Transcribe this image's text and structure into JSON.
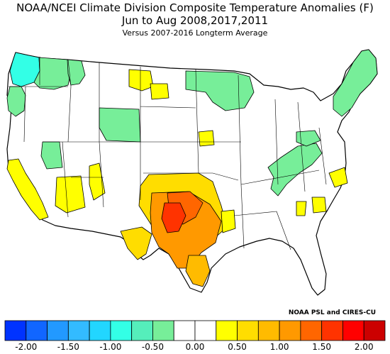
{
  "header": {
    "line1": "NOAA/NCEI Climate Division Composite Temperature Anomalies (F)",
    "line2": "Jun to Aug   2008,2017,2011",
    "line3": "Versus 2007-2016 Longterm Average"
  },
  "credit": "NOAA PSL and CIRES-CU",
  "colorbar": {
    "colors": [
      "#0033ff",
      "#1166ff",
      "#2299ff",
      "#33bbff",
      "#22d6ff",
      "#33ffe6",
      "#55eebb",
      "#77ee99",
      "#ffffff",
      "#ffffff",
      "#ffff00",
      "#ffdd00",
      "#ffbb00",
      "#ff9900",
      "#ff6600",
      "#ff3300",
      "#ff0000",
      "#cc0000"
    ],
    "tick_labels": [
      "-2.00",
      "-1.50",
      "-1.00",
      "-0.50",
      "0.00",
      "0.50",
      "1.00",
      "1.50",
      "2.00"
    ]
  },
  "map_data": {
    "projection": "Lambert conformal, contiguous United States, climate divisions",
    "anomaly_regions": [
      {
        "region": "Washington coast / Puget Sound",
        "anomaly_f": -1.0
      },
      {
        "region": "Washington Cascades / east",
        "anomaly_f": -0.5
      },
      {
        "region": "Oregon coast",
        "anomaly_f": -0.5
      },
      {
        "region": "Northern Idaho / NW Montana",
        "anomaly_f": -0.5
      },
      {
        "region": "Central Montana",
        "anomaly_f": 0.5
      },
      {
        "region": "Western North Dakota",
        "anomaly_f": 0.5
      },
      {
        "region": "Eastern North Dakota / Minnesota / Wisconsin",
        "anomaly_f": -0.5
      },
      {
        "region": "Wyoming / northern Colorado",
        "anomaly_f": -0.5
      },
      {
        "region": "California coast and southeast",
        "anomaly_f": 0.5
      },
      {
        "region": "Nevada / Utah south",
        "anomaly_f": -0.5
      },
      {
        "region": "Arizona / New Mexico",
        "anomaly_f": 0.5
      },
      {
        "region": "Iowa / Missouri north",
        "anomaly_f": 0.5
      },
      {
        "region": "Kansas south / Oklahoma",
        "anomaly_f": 1.0
      },
      {
        "region": "Southwest Oklahoma / north Texas",
        "anomaly_f": 1.5
      },
      {
        "region": "Central Texas",
        "anomaly_f": 1.0
      },
      {
        "region": "West Texas / Texas coast",
        "anomaly_f": 0.75
      },
      {
        "region": "Louisiana west",
        "anomaly_f": 0.5
      },
      {
        "region": "Appalachians (PA/WV/VA/TN)",
        "anomaly_f": -0.5
      },
      {
        "region": "New England",
        "anomaly_f": -0.5
      },
      {
        "region": "North Carolina coast",
        "anomaly_f": 0.5
      },
      {
        "region": "South Carolina / Georgia",
        "anomaly_f": 0.5
      }
    ]
  }
}
